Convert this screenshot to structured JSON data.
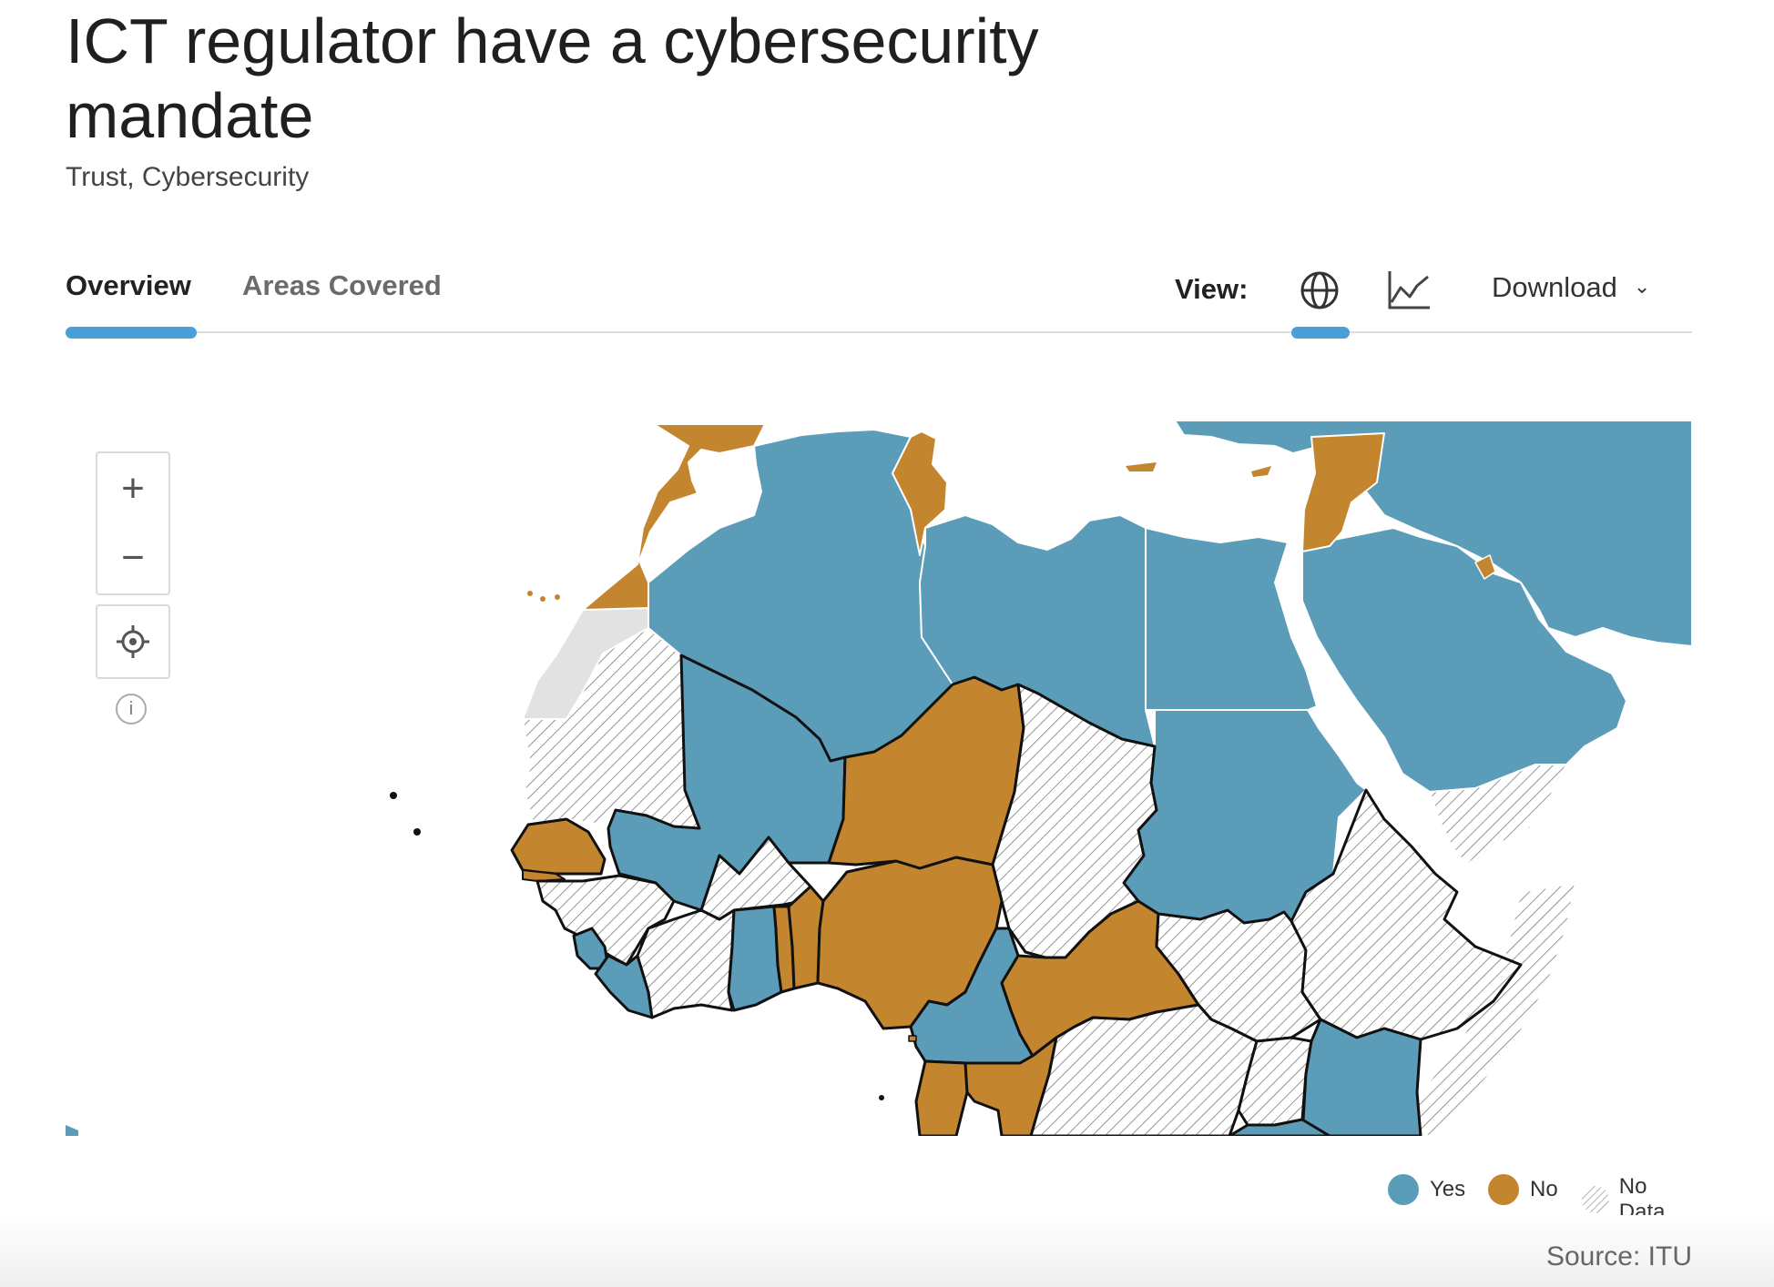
{
  "title": "ICT regulator have a cybersecurity mandate",
  "subtitle": "Trust, Cybersecurity",
  "tabs": [
    {
      "label": "Overview",
      "active": true
    },
    {
      "label": "Areas Covered",
      "active": false
    }
  ],
  "view": {
    "label": "View:",
    "options": [
      "globe-icon",
      "line-chart-icon"
    ],
    "selected": "globe-icon"
  },
  "download": {
    "label": "Download",
    "icon": "chevron-down-icon"
  },
  "map_controls": {
    "zoom_in": "+",
    "zoom_out": "−",
    "info": "i"
  },
  "colors": {
    "yes": "#5b9cb8",
    "no": "#c4852f",
    "no_data": "hatched",
    "disputed": "#e2e2e2",
    "accent": "#4b9fd9"
  },
  "legend": [
    {
      "label": "Yes",
      "color": "#5b9cb8"
    },
    {
      "label": "No",
      "color": "#c4852f"
    },
    {
      "label": "No Data",
      "color": "hatched"
    }
  ],
  "source": "Source: ITU"
}
